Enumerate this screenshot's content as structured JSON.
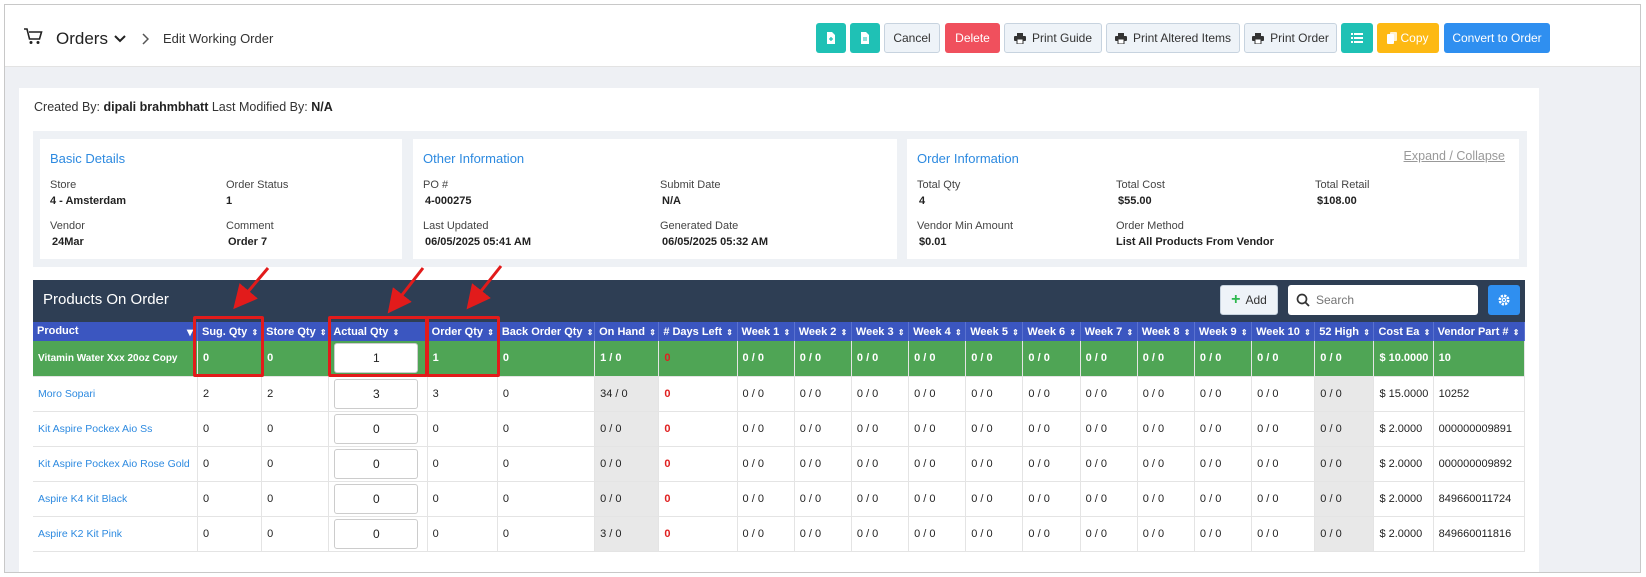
{
  "header": {
    "title": "Orders",
    "breadcrumb": "Edit Working Order",
    "buttons": {
      "cancel": "Cancel",
      "delete": "Delete",
      "print_guide": "Print Guide",
      "print_altered": "Print Altered Items",
      "print_order": "Print Order",
      "copy": "Copy",
      "convert": "Convert to Order"
    }
  },
  "meta": {
    "created_label": "Created By:",
    "created_by": "dipali brahmbhatt",
    "modified_label": "Last Modified By:",
    "modified_by": "N/A"
  },
  "expand_collapse": "Expand / Collapse",
  "basic_details": {
    "title": "Basic Details",
    "store_label": "Store",
    "store": "4 - Amsterdam",
    "status_label": "Order Status",
    "status": "1",
    "vendor_label": "Vendor",
    "vendor": "24Mar",
    "comment_label": "Comment",
    "comment": "Order 7"
  },
  "other_info": {
    "title": "Other Information",
    "po_label": "PO #",
    "po": "4-000275",
    "submit_label": "Submit Date",
    "submit": "N/A",
    "updated_label": "Last Updated",
    "updated": "06/05/2025 05:41 AM",
    "generated_label": "Generated Date",
    "generated": "06/05/2025 05:32 AM"
  },
  "order_info": {
    "title": "Order Information",
    "qty_label": "Total Qty",
    "qty": "4",
    "cost_label": "Total Cost",
    "cost": "$55.00",
    "retail_label": "Total Retail",
    "retail": "$108.00",
    "min_label": "Vendor Min Amount",
    "min": "$0.01",
    "method_label": "Order Method",
    "method": "List All Products From Vendor"
  },
  "products": {
    "title": "Products On Order",
    "add_label": "Add",
    "search_placeholder": "Search",
    "columns": [
      "Product",
      "Sug. Qty",
      "Store Qty",
      "Actual Qty",
      "Order Qty",
      "Back Order Qty",
      "On Hand",
      "# Days Left",
      "Week 1",
      "Week 2",
      "Week 3",
      "Week 4",
      "Week 5",
      "Week 6",
      "Week 7",
      "Week 8",
      "Week 9",
      "Week 10",
      "52 High",
      "Cost Ea",
      "Vendor Part #"
    ],
    "rows": [
      [
        "Vitamin Water Xxx 20oz Copy",
        "0",
        "0",
        "1",
        "1",
        "0",
        "1 / 0",
        "0",
        "0 / 0",
        "0 / 0",
        "0 / 0",
        "0 / 0",
        "0 / 0",
        "0 / 0",
        "0 / 0",
        "0 / 0",
        "0 / 0",
        "0 / 0",
        "0 / 0",
        "$ 10.0000",
        "10"
      ],
      [
        "Moro Sopari",
        "2",
        "2",
        "3",
        "3",
        "0",
        "34 / 0",
        "0",
        "0 / 0",
        "0 / 0",
        "0 / 0",
        "0 / 0",
        "0 / 0",
        "0 / 0",
        "0 / 0",
        "0 / 0",
        "0 / 0",
        "0 / 0",
        "0 / 0",
        "$ 15.0000",
        "10252"
      ],
      [
        "Kit Aspire Pockex Aio Ss",
        "0",
        "0",
        "0",
        "0",
        "0",
        "0 / 0",
        "0",
        "0 / 0",
        "0 / 0",
        "0 / 0",
        "0 / 0",
        "0 / 0",
        "0 / 0",
        "0 / 0",
        "0 / 0",
        "0 / 0",
        "0 / 0",
        "0 / 0",
        "$ 2.0000",
        "000000009891"
      ],
      [
        "Kit Aspire Pockex Aio Rose Gold",
        "0",
        "0",
        "0",
        "0",
        "0",
        "0 / 0",
        "0",
        "0 / 0",
        "0 / 0",
        "0 / 0",
        "0 / 0",
        "0 / 0",
        "0 / 0",
        "0 / 0",
        "0 / 0",
        "0 / 0",
        "0 / 0",
        "0 / 0",
        "$ 2.0000",
        "000000009892"
      ],
      [
        "Aspire K4 Kit Black",
        "0",
        "0",
        "0",
        "0",
        "0",
        "0 / 0",
        "0",
        "0 / 0",
        "0 / 0",
        "0 / 0",
        "0 / 0",
        "0 / 0",
        "0 / 0",
        "0 / 0",
        "0 / 0",
        "0 / 0",
        "0 / 0",
        "0 / 0",
        "$ 2.0000",
        "849660011724"
      ],
      [
        "Aspire K2 Kit Pink",
        "0",
        "0",
        "0",
        "0",
        "0",
        "3 / 0",
        "0",
        "0 / 0",
        "0 / 0",
        "0 / 0",
        "0 / 0",
        "0 / 0",
        "0 / 0",
        "0 / 0",
        "0 / 0",
        "0 / 0",
        "0 / 0",
        "0 / 0",
        "$ 2.0000",
        "849660011816"
      ]
    ]
  },
  "colors": {
    "teal": "#1fc1b5",
    "red": "#f0505d",
    "yellow": "#fdb913",
    "blue": "#2f8ff0",
    "header_navy": "#2e3e54",
    "table_head": "#3b56c0",
    "row_highlight": "#4fa555",
    "annotation": "#e21b1b"
  }
}
